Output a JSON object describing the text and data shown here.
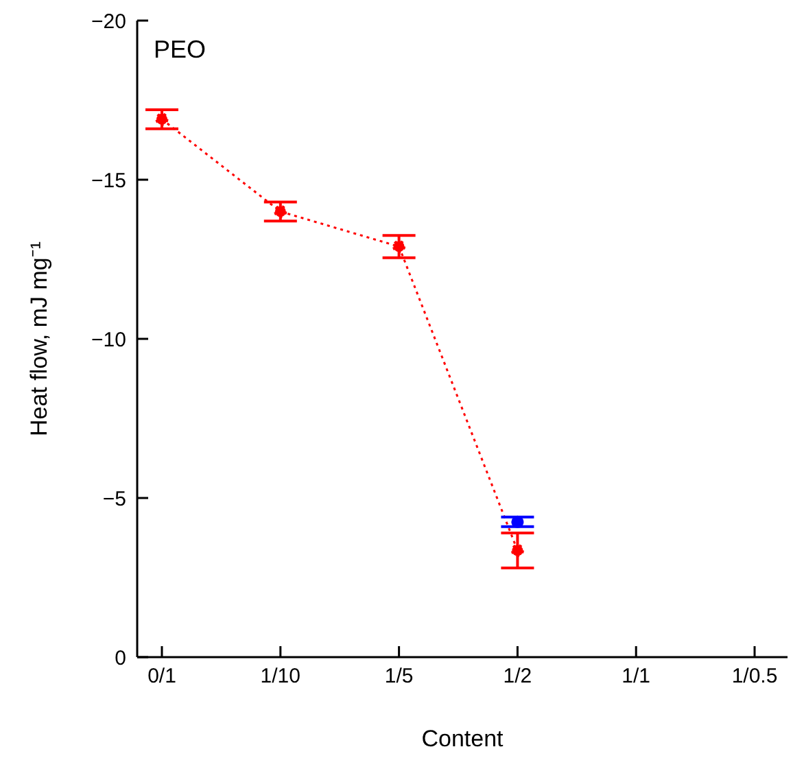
{
  "chart_data": {
    "type": "line",
    "xlabel": "Content",
    "ylabel": "Heat flow, mJ mg⁻¹",
    "annotations": [
      "PEO"
    ],
    "categories": [
      "0/1",
      "1/10",
      "1/5",
      "1/2",
      "1/1",
      "1/0.5"
    ],
    "ylim": [
      0,
      -20
    ],
    "yticks": [
      0,
      -5,
      -10,
      -15,
      -20
    ],
    "grid": false,
    "legend": false,
    "marker": "circle",
    "series": [
      {
        "line_style": "dotted",
        "color": "#ff0000",
        "values": [
          -16.9,
          -14.0,
          -12.9,
          -3.35,
          null,
          null
        ],
        "errors": [
          0.3,
          0.3,
          0.35,
          0.55,
          null,
          null
        ]
      },
      {
        "type": "scatter",
        "color": "#0000ff",
        "values": [
          null,
          null,
          null,
          -4.25,
          null,
          null
        ],
        "errors": [
          null,
          null,
          null,
          0.15,
          null,
          null
        ]
      }
    ]
  }
}
